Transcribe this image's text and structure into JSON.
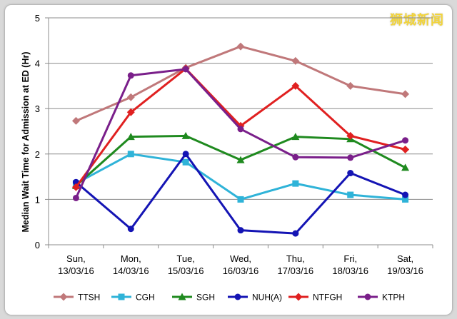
{
  "watermark": "狮城新闻",
  "chart_data": {
    "type": "line",
    "title": "",
    "ylabel": "Median Wait Time for Admission at ED (Hr)",
    "xlabel": "",
    "ylim": [
      0,
      5
    ],
    "yticks": [
      0,
      1,
      2,
      3,
      4,
      5
    ],
    "grid": true,
    "legend_position": "bottom",
    "categories": [
      [
        "Sun,",
        "13/03/16"
      ],
      [
        "Mon,",
        "14/03/16"
      ],
      [
        "Tue,",
        "15/03/16"
      ],
      [
        "Wed,",
        "16/03/16"
      ],
      [
        "Thu,",
        "17/03/16"
      ],
      [
        "Fri,",
        "18/03/16"
      ],
      [
        "Sat,",
        "19/03/16"
      ]
    ],
    "series": [
      {
        "name": "TTSH",
        "color": "#c0787a",
        "marker": "diamond",
        "values": [
          2.73,
          3.25,
          3.9,
          4.37,
          4.05,
          3.5,
          3.32
        ]
      },
      {
        "name": "CGH",
        "color": "#2fb3d8",
        "marker": "square",
        "values": [
          1.35,
          2.0,
          1.82,
          1.0,
          1.35,
          1.1,
          1.0
        ]
      },
      {
        "name": "SGH",
        "color": "#1f8a1f",
        "marker": "triangle",
        "values": [
          1.3,
          2.38,
          2.4,
          1.87,
          2.38,
          2.33,
          1.7
        ]
      },
      {
        "name": "NUH(A)",
        "color": "#1414b4",
        "marker": "circle",
        "values": [
          1.38,
          0.35,
          2.0,
          0.32,
          0.25,
          1.58,
          1.1
        ]
      },
      {
        "name": "NTFGH",
        "color": "#e02020",
        "marker": "diamond",
        "values": [
          1.27,
          2.92,
          3.88,
          2.62,
          3.5,
          2.4,
          2.1
        ]
      },
      {
        "name": "KTPH",
        "color": "#7a1f8a",
        "marker": "circle",
        "values": [
          1.03,
          3.73,
          3.87,
          2.55,
          1.93,
          1.92,
          2.3
        ]
      }
    ]
  }
}
